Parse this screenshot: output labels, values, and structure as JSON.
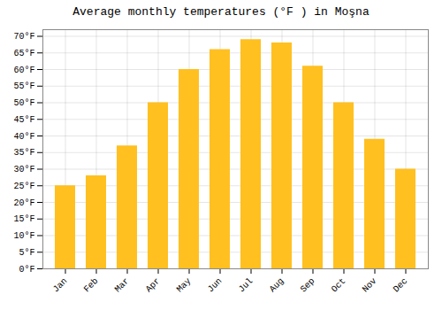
{
  "chart_data": {
    "type": "bar",
    "title": "Average monthly temperatures (°F ) in Moşna",
    "categories": [
      "Jan",
      "Feb",
      "Mar",
      "Apr",
      "May",
      "Jun",
      "Jul",
      "Aug",
      "Sep",
      "Oct",
      "Nov",
      "Dec"
    ],
    "values": [
      25,
      28,
      37,
      50,
      60,
      66,
      69,
      68,
      61,
      50,
      39,
      30
    ],
    "color": "#FFC020",
    "ylim": [
      0,
      72
    ],
    "yticks": [
      {
        "value": 0,
        "label": "0°F"
      },
      {
        "value": 5,
        "label": "5°F"
      },
      {
        "value": 10,
        "label": "10°F"
      },
      {
        "value": 15,
        "label": "15°F"
      },
      {
        "value": 20,
        "label": "20°F"
      },
      {
        "value": 25,
        "label": "25°F"
      },
      {
        "value": 30,
        "label": "30°F"
      },
      {
        "value": 35,
        "label": "35°F"
      },
      {
        "value": 40,
        "label": "40°F"
      },
      {
        "value": 45,
        "label": "45°F"
      },
      {
        "value": 50,
        "label": "50°F"
      },
      {
        "value": 55,
        "label": "55°F"
      },
      {
        "value": 60,
        "label": "60°F"
      },
      {
        "value": 65,
        "label": "65°F"
      },
      {
        "value": 70,
        "label": "70°F"
      }
    ],
    "grid": true
  }
}
